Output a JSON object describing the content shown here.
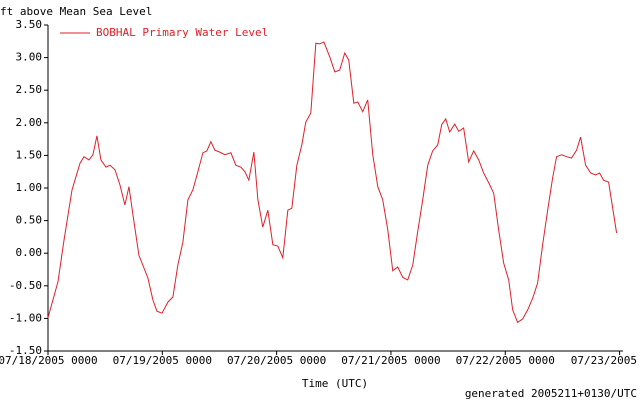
{
  "chart_data": {
    "type": "line",
    "y_label": "ft above Mean Sea Level",
    "x_label": "Time (UTC)",
    "footer": "generated 2005211+0130/UTC",
    "legend": "top-left",
    "grid": false,
    "xlim": [
      0,
      5.03
    ],
    "ylim": [
      -1.5,
      3.5
    ],
    "xticks": [
      {
        "value": 0,
        "label": "07/18/2005 0000"
      },
      {
        "value": 1,
        "label": "07/19/2005 0000"
      },
      {
        "value": 2,
        "label": "07/20/2005 0000"
      },
      {
        "value": 3,
        "label": "07/21/2005 0000"
      },
      {
        "value": 4,
        "label": "07/22/2005 0000"
      },
      {
        "value": 5,
        "label": "07/23/2005"
      }
    ],
    "yticks": [
      {
        "value": 3.5,
        "label": "3.50"
      },
      {
        "value": 3,
        "label": "3.00"
      },
      {
        "value": 2.5,
        "label": "2.50"
      },
      {
        "value": 2,
        "label": "2.00"
      },
      {
        "value": 1.5,
        "label": "1.50"
      },
      {
        "value": 1,
        "label": "1.00"
      },
      {
        "value": 0.5,
        "label": "0.50"
      },
      {
        "value": 0,
        "label": "0.00"
      },
      {
        "value": -0.5,
        "label": "-0.50"
      },
      {
        "value": -1,
        "label": "-1.00"
      },
      {
        "value": -1.5,
        "label": "-1.50"
      }
    ],
    "x": [
      0,
      0.087,
      0.14,
      0.21,
      0.28,
      0.315,
      0.358,
      0.393,
      0.428,
      0.463,
      0.507,
      0.542,
      0.586,
      0.629,
      0.673,
      0.708,
      0.743,
      0.795,
      0.874,
      0.918,
      0.953,
      0.997,
      1.049,
      1.093,
      1.136,
      1.18,
      1.224,
      1.267,
      1.311,
      1.355,
      1.39,
      1.425,
      1.46,
      1.503,
      1.547,
      1.6,
      1.643,
      1.687,
      1.722,
      1.757,
      1.801,
      1.836,
      1.879,
      1.923,
      1.967,
      2.01,
      2.054,
      2.098,
      2.133,
      2.177,
      2.22,
      2.255,
      2.299,
      2.343,
      2.378,
      2.413,
      2.465,
      2.509,
      2.552,
      2.596,
      2.631,
      2.675,
      2.71,
      2.753,
      2.797,
      2.841,
      2.885,
      2.928,
      2.972,
      3.016,
      3.059,
      3.103,
      3.147,
      3.191,
      3.234,
      3.278,
      3.322,
      3.365,
      3.409,
      3.444,
      3.479,
      3.514,
      3.558,
      3.593,
      3.636,
      3.68,
      3.724,
      3.768,
      3.811,
      3.855,
      3.899,
      3.942,
      3.986,
      4.03,
      4.065,
      4.108,
      4.152,
      4.196,
      4.24,
      4.283,
      4.327,
      4.371,
      4.414,
      4.449,
      4.493,
      4.537,
      4.58,
      4.624,
      4.659,
      4.703,
      4.747,
      4.79,
      4.825,
      4.86,
      4.904,
      4.974
    ],
    "series": [
      {
        "name": "BOBHAL Primary Water Level",
        "color": "#e0202a",
        "values": [
          -0.99,
          -0.44,
          0.2,
          0.97,
          1.38,
          1.48,
          1.43,
          1.51,
          1.8,
          1.43,
          1.32,
          1.35,
          1.28,
          1.05,
          0.74,
          1.02,
          0.59,
          -0.03,
          -0.38,
          -0.72,
          -0.89,
          -0.92,
          -0.75,
          -0.67,
          -0.18,
          0.17,
          0.82,
          0.97,
          1.25,
          1.54,
          1.57,
          1.71,
          1.58,
          1.55,
          1.51,
          1.54,
          1.35,
          1.32,
          1.25,
          1.12,
          1.55,
          0.82,
          0.4,
          0.66,
          0.13,
          0.11,
          -0.07,
          0.66,
          0.69,
          1.35,
          1.66,
          2.01,
          2.15,
          3.22,
          3.21,
          3.24,
          3.01,
          2.78,
          2.81,
          3.07,
          2.96,
          2.3,
          2.32,
          2.17,
          2.35,
          1.51,
          1.02,
          0.82,
          0.36,
          -0.27,
          -0.21,
          -0.37,
          -0.41,
          -0.18,
          0.33,
          0.82,
          1.35,
          1.57,
          1.66,
          1.97,
          2.06,
          1.86,
          1.98,
          1.87,
          1.92,
          1.4,
          1.57,
          1.43,
          1.23,
          1.08,
          0.92,
          0.36,
          -0.15,
          -0.41,
          -0.87,
          -1.06,
          -1.01,
          -0.87,
          -0.69,
          -0.46,
          0.13,
          0.66,
          1.15,
          1.48,
          1.51,
          1.48,
          1.46,
          1.58,
          1.78,
          1.35,
          1.23,
          1.2,
          1.23,
          1.12,
          1.09,
          0.31
        ]
      }
    ]
  }
}
